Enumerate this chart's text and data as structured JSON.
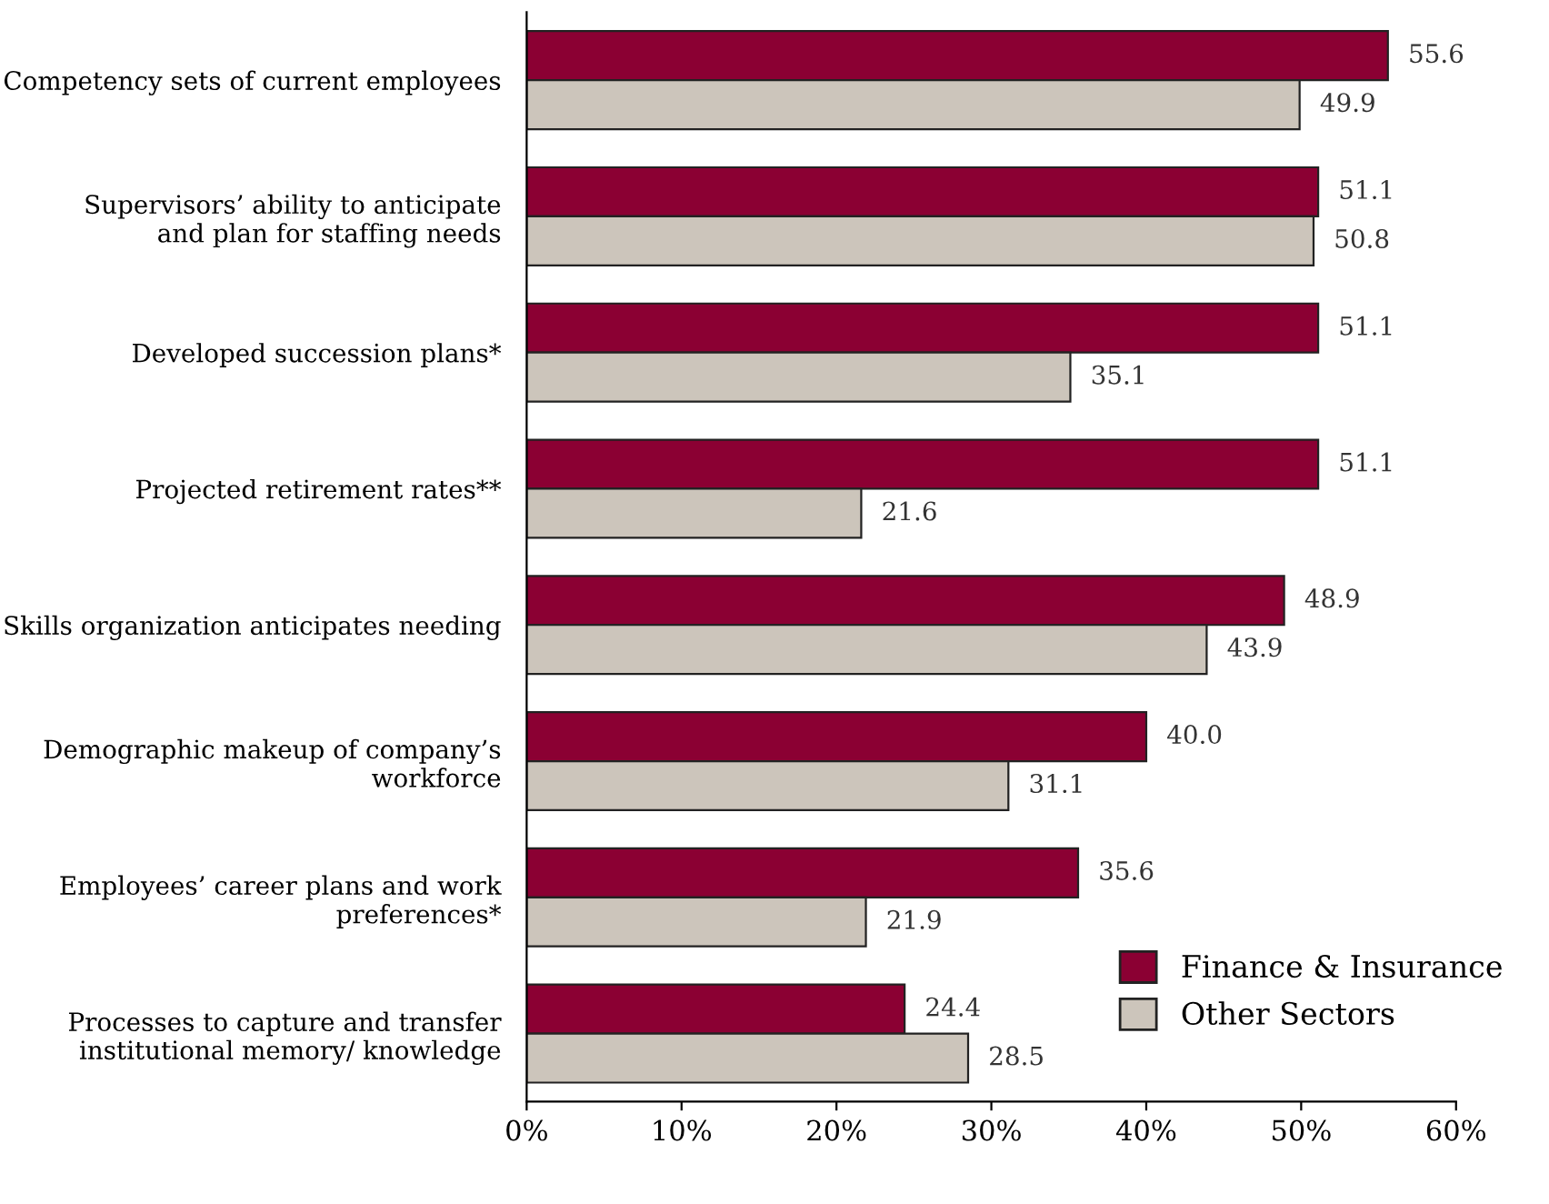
{
  "chart_data": {
    "type": "bar",
    "orientation": "horizontal",
    "categories": [
      "Competency sets of current employees",
      "Supervisors’ ability to anticipate\nand plan for staffing needs",
      "Developed succession plans*",
      "Projected retirement rates**",
      "Skills organization anticipates needing",
      "Demographic makeup of company’s\nworkforce",
      "Employees’ career plans and work\npreferences*",
      "Processes to capture and transfer\ninstitutional memory/ knowledge"
    ],
    "series": [
      {
        "name": "Finance & Insurance",
        "color": "#8b0033",
        "values": [
          55.6,
          51.1,
          51.1,
          51.1,
          48.9,
          40.0,
          35.6,
          24.4
        ],
        "value_labels": [
          "55.6",
          "51.1",
          "51.1",
          "51.1",
          "48.9",
          "40.0",
          "35.6",
          "24.4"
        ]
      },
      {
        "name": "Other Sectors",
        "color": "#ccc5bb",
        "values": [
          49.9,
          50.8,
          35.1,
          21.6,
          43.9,
          31.1,
          21.9,
          28.5
        ],
        "value_labels": [
          "49.9",
          "50.8",
          "35.1",
          "21.6",
          "43.9",
          "31.1",
          "21.9",
          "28.5"
        ]
      }
    ],
    "xlim": [
      0,
      60
    ],
    "xticks": [
      {
        "value": 0,
        "label": "0%"
      },
      {
        "value": 10,
        "label": "10%"
      },
      {
        "value": 20,
        "label": "20%"
      },
      {
        "value": 30,
        "label": "30%"
      },
      {
        "value": 40,
        "label": "40%"
      },
      {
        "value": 50,
        "label": "50%"
      },
      {
        "value": 60,
        "label": "60%"
      }
    ],
    "legend": "bottom right",
    "grid": false
  }
}
